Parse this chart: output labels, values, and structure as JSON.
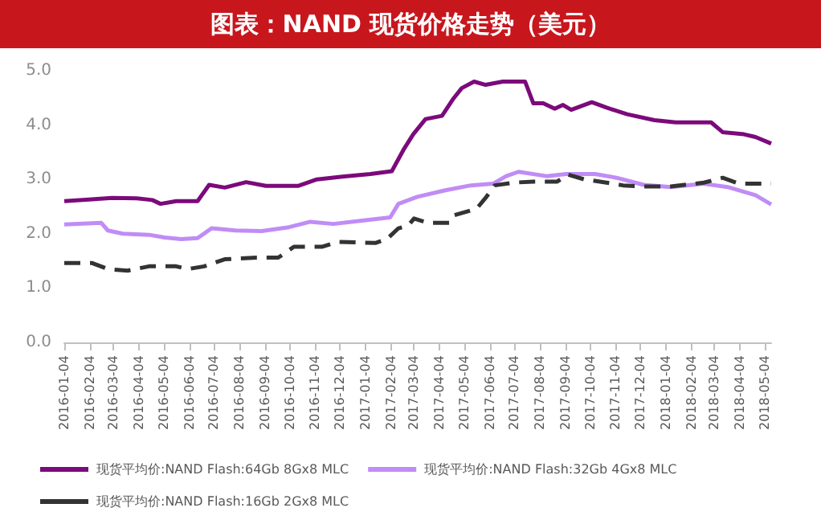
{
  "chart_data": {
    "type": "line",
    "title": "图表：NAND 现货价格走势（美元）",
    "xlim": [
      "2016-01-04",
      "2018-05-12"
    ],
    "xticks": [
      "2016-01-04",
      "2016-02-04",
      "2016-03-04",
      "2016-04-04",
      "2016-05-04",
      "2016-06-04",
      "2016-07-04",
      "2016-08-04",
      "2016-09-04",
      "2016-10-04",
      "2016-11-04",
      "2016-12-04",
      "2017-01-04",
      "2017-02-04",
      "2017-03-04",
      "2017-04-04",
      "2017-05-04",
      "2017-06-04",
      "2017-07-04",
      "2017-08-04",
      "2017-09-04",
      "2017-10-04",
      "2017-11-04",
      "2017-12-04",
      "2018-01-04",
      "2018-02-04",
      "2018-03-04",
      "2018-04-04",
      "2018-05-04"
    ],
    "ylim": [
      0,
      5
    ],
    "yticks": [
      {
        "value": 0,
        "label": "0.0"
      },
      {
        "value": 1,
        "label": "1.0"
      },
      {
        "value": 2,
        "label": "2.0"
      },
      {
        "value": 3,
        "label": "3.0"
      },
      {
        "value": 4,
        "label": "4.0"
      },
      {
        "value": 5,
        "label": "5.0"
      }
    ],
    "grid": false,
    "legend": "bottom",
    "marker": "none",
    "series": [
      {
        "name": "现货平均价:NAND Flash:64Gb 8Gx8 MLC",
        "color": "#7b0a7b",
        "line_style": "solid",
        "x": [
          "2016-01-04",
          "2016-02-03",
          "2016-03-02",
          "2016-04-01",
          "2016-04-20",
          "2016-04-30",
          "2016-05-19",
          "2016-06-14",
          "2016-06-28",
          "2016-07-17",
          "2016-08-12",
          "2016-09-05",
          "2016-10-14",
          "2016-11-06",
          "2016-12-07",
          "2017-01-10",
          "2017-02-05",
          "2017-02-19",
          "2017-03-03",
          "2017-03-18",
          "2017-04-07",
          "2017-04-21",
          "2017-05-01",
          "2017-05-16",
          "2017-05-30",
          "2017-06-20",
          "2017-07-17",
          "2017-07-27",
          "2017-08-08",
          "2017-08-22",
          "2017-09-01",
          "2017-09-11",
          "2017-10-06",
          "2017-10-24",
          "2017-11-18",
          "2017-12-21",
          "2018-01-16",
          "2018-02-28",
          "2018-03-14",
          "2018-04-09",
          "2018-04-23",
          "2018-05-12"
        ],
        "values": [
          2.6,
          2.63,
          2.66,
          2.65,
          2.62,
          2.55,
          2.6,
          2.6,
          2.9,
          2.85,
          2.95,
          2.88,
          2.88,
          3.0,
          3.05,
          3.1,
          3.15,
          3.54,
          3.83,
          4.11,
          4.17,
          4.49,
          4.68,
          4.8,
          4.74,
          4.8,
          4.8,
          4.4,
          4.4,
          4.3,
          4.37,
          4.28,
          4.42,
          4.32,
          4.2,
          4.09,
          4.05,
          4.05,
          3.87,
          3.83,
          3.78,
          3.66
        ]
      },
      {
        "name": "现货平均价:NAND Flash:32Gb 4Gx8 MLC",
        "color": "#c08cf5",
        "line_style": "solid",
        "x": [
          "2016-01-04",
          "2016-02-18",
          "2016-02-26",
          "2016-03-15",
          "2016-04-16",
          "2016-05-05",
          "2016-05-25",
          "2016-06-14",
          "2016-07-01",
          "2016-07-30",
          "2016-08-31",
          "2016-10-03",
          "2016-10-29",
          "2016-11-26",
          "2017-01-04",
          "2017-02-03",
          "2017-02-13",
          "2017-03-08",
          "2017-04-11",
          "2017-05-12",
          "2017-06-08",
          "2017-06-24",
          "2017-07-09",
          "2017-08-12",
          "2017-09-05",
          "2017-10-10",
          "2017-11-05",
          "2017-12-08",
          "2018-01-10",
          "2018-02-19",
          "2018-03-20",
          "2018-04-23",
          "2018-05-12"
        ],
        "values": [
          2.17,
          2.2,
          2.06,
          2.0,
          1.98,
          1.93,
          1.9,
          1.92,
          2.1,
          2.06,
          2.05,
          2.12,
          2.22,
          2.18,
          2.25,
          2.3,
          2.55,
          2.68,
          2.8,
          2.89,
          2.92,
          3.06,
          3.14,
          3.06,
          3.1,
          3.1,
          3.03,
          2.9,
          2.86,
          2.92,
          2.86,
          2.71,
          2.54
        ]
      },
      {
        "name": "现货平均价:NAND Flash:16Gb 2Gx8 MLC",
        "color": "#333333",
        "line_style": "dashed",
        "x": [
          "2016-01-04",
          "2016-02-07",
          "2016-02-26",
          "2016-03-21",
          "2016-04-16",
          "2016-05-19",
          "2016-06-02",
          "2016-06-22",
          "2016-07-17",
          "2016-08-25",
          "2016-09-20",
          "2016-10-09",
          "2016-11-12",
          "2016-12-01",
          "2017-01-16",
          "2017-01-30",
          "2017-02-13",
          "2017-02-25",
          "2017-03-04",
          "2017-03-21",
          "2017-04-16",
          "2017-04-22",
          "2017-05-19",
          "2017-05-31",
          "2017-06-10",
          "2017-07-03",
          "2017-07-27",
          "2017-08-25",
          "2017-09-07",
          "2017-09-27",
          "2017-10-24",
          "2017-11-13",
          "2017-12-08",
          "2018-01-10",
          "2018-02-19",
          "2018-03-14",
          "2018-04-03",
          "2018-05-12"
        ],
        "values": [
          1.46,
          1.46,
          1.35,
          1.32,
          1.4,
          1.4,
          1.35,
          1.4,
          1.53,
          1.56,
          1.56,
          1.76,
          1.76,
          1.85,
          1.83,
          1.9,
          2.1,
          2.15,
          2.28,
          2.2,
          2.2,
          2.34,
          2.46,
          2.68,
          2.89,
          2.94,
          2.96,
          2.96,
          3.09,
          3.0,
          2.94,
          2.89,
          2.87,
          2.87,
          2.94,
          3.03,
          2.92,
          2.92
        ]
      }
    ]
  }
}
